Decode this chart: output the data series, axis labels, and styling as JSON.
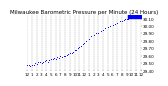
{
  "title": "Milwaukee Barometric Pressure per Minute (24 Hours)",
  "background_color": "#ffffff",
  "plot_bg_color": "#ffffff",
  "grid_color": "#888888",
  "dot_color": "#0000ff",
  "bar_color": "#0000ff",
  "ylim": [
    29.4,
    30.15
  ],
  "xlim": [
    0,
    1440
  ],
  "y_ticks": [
    29.4,
    29.5,
    29.6,
    29.7,
    29.8,
    29.9,
    30.0,
    30.1
  ],
  "y_tick_labels": [
    "29.40",
    "29.50",
    "29.60",
    "29.70",
    "29.80",
    "29.90",
    "30.00",
    "30.10"
  ],
  "x_ticks": [
    0,
    60,
    120,
    180,
    240,
    300,
    360,
    420,
    480,
    540,
    600,
    660,
    720,
    780,
    840,
    900,
    960,
    1020,
    1080,
    1140,
    1200,
    1260,
    1320,
    1380,
    1440
  ],
  "x_tick_labels": [
    "12",
    "1",
    "2",
    "3",
    "4",
    "5",
    "6",
    "7",
    "8",
    "9",
    "10",
    "11",
    "12",
    "1",
    "2",
    "3",
    "4",
    "5",
    "6",
    "7",
    "8",
    "9",
    "10",
    "11",
    "12"
  ],
  "data_x": [
    0,
    20,
    40,
    60,
    80,
    100,
    120,
    140,
    160,
    180,
    200,
    220,
    240,
    260,
    280,
    300,
    320,
    340,
    360,
    380,
    400,
    420,
    440,
    460,
    480,
    500,
    520,
    540,
    560,
    580,
    600,
    620,
    640,
    660,
    680,
    700,
    720,
    750,
    780,
    810,
    840,
    870,
    900,
    930,
    960,
    990,
    1020,
    1050,
    1080,
    1110,
    1140,
    1170,
    1200,
    1220,
    1240,
    1260,
    1280,
    1300,
    1320,
    1340,
    1360,
    1380,
    1400,
    1420,
    1440
  ],
  "data_y": [
    29.47,
    29.48,
    29.46,
    29.47,
    29.48,
    29.5,
    29.49,
    29.51,
    29.52,
    29.5,
    29.52,
    29.53,
    29.54,
    29.52,
    29.54,
    29.56,
    29.55,
    29.57,
    29.56,
    29.58,
    29.57,
    29.59,
    29.58,
    29.59,
    29.6,
    29.61,
    29.62,
    29.63,
    29.64,
    29.65,
    29.67,
    29.68,
    29.7,
    29.71,
    29.73,
    29.75,
    29.77,
    29.8,
    29.83,
    29.86,
    29.88,
    29.9,
    29.91,
    29.93,
    29.95,
    29.97,
    29.98,
    30.0,
    30.01,
    30.03,
    30.04,
    30.06,
    30.07,
    30.08,
    30.09,
    30.1,
    30.1,
    30.11,
    30.11,
    30.12,
    30.12,
    30.12,
    30.12,
    30.12,
    30.12
  ],
  "highlight_xmin": 1270,
  "highlight_xmax": 1440,
  "highlight_ymin": 30.105,
  "highlight_ymax": 30.15,
  "title_fontsize": 4.0,
  "tick_fontsize": 3.0,
  "dot_size": 0.5,
  "vgrid_positions": [
    0,
    60,
    120,
    180,
    240,
    300,
    360,
    420,
    480,
    540,
    600,
    660,
    720,
    780,
    840,
    900,
    960,
    1020,
    1080,
    1140,
    1200,
    1260,
    1320,
    1380,
    1440
  ]
}
